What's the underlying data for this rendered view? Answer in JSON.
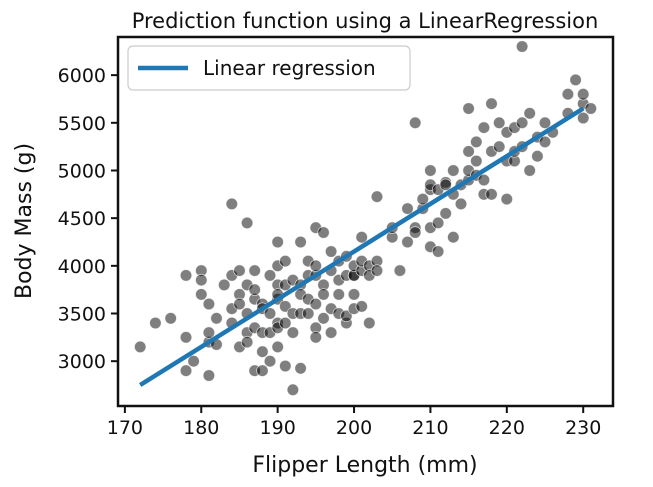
{
  "chart_data": {
    "type": "scatter",
    "title": "Prediction function using a LinearRegression",
    "xlabel": "Flipper Length (mm)",
    "ylabel": "Body Mass (g)",
    "xlim": [
      169.1,
      233.9
    ],
    "ylim": [
      2530,
      6400
    ],
    "xticks": [
      170,
      180,
      190,
      200,
      210,
      220,
      230
    ],
    "yticks": [
      3000,
      3500,
      4000,
      4500,
      5000,
      5500,
      6000
    ],
    "grid": false,
    "legend": {
      "position": "top-left",
      "entries": [
        "Linear regression"
      ]
    },
    "scatter": {
      "color": "#000000",
      "opacity": 0.5,
      "points": [
        [
          172,
          3150
        ],
        [
          174,
          3400
        ],
        [
          176,
          3450
        ],
        [
          178,
          3250
        ],
        [
          178,
          3900
        ],
        [
          178,
          2900
        ],
        [
          179,
          3000
        ],
        [
          180,
          3950
        ],
        [
          180,
          3850
        ],
        [
          180,
          3700
        ],
        [
          181,
          3200
        ],
        [
          181,
          3600
        ],
        [
          181,
          2850
        ],
        [
          181,
          3300
        ],
        [
          182,
          3175
        ],
        [
          182,
          3450
        ],
        [
          183,
          3800
        ],
        [
          184,
          3900
        ],
        [
          184,
          4650
        ],
        [
          184,
          3550
        ],
        [
          184,
          3400
        ],
        [
          185,
          3700
        ],
        [
          185,
          3950
        ],
        [
          185,
          3150
        ],
        [
          185,
          3600
        ],
        [
          186,
          3300
        ],
        [
          186,
          3800
        ],
        [
          186,
          4450
        ],
        [
          186,
          3500
        ],
        [
          186,
          3200
        ],
        [
          187,
          3650
        ],
        [
          187,
          3750
        ],
        [
          187,
          2900
        ],
        [
          187,
          3950
        ],
        [
          187,
          3350
        ],
        [
          188,
          3600
        ],
        [
          188,
          3300
        ],
        [
          188,
          2900
        ],
        [
          188,
          3100
        ],
        [
          188,
          3550
        ],
        [
          189,
          3500
        ],
        [
          189,
          3900
        ],
        [
          189,
          3300
        ],
        [
          189,
          3000
        ],
        [
          190,
          3650
        ],
        [
          190,
          3400
        ],
        [
          190,
          3800
        ],
        [
          190,
          4250
        ],
        [
          190,
          4000
        ],
        [
          190,
          3350
        ],
        [
          190,
          3700
        ],
        [
          190,
          3150
        ],
        [
          191,
          3575
        ],
        [
          191,
          3800
        ],
        [
          191,
          4050
        ],
        [
          191,
          3400
        ],
        [
          191,
          2950
        ],
        [
          192,
          3500
        ],
        [
          192,
          3850
        ],
        [
          192,
          3300
        ],
        [
          192,
          2700
        ],
        [
          193,
          3500
        ],
        [
          193,
          3800
        ],
        [
          193,
          4250
        ],
        [
          193,
          3700
        ],
        [
          193,
          2925
        ],
        [
          194,
          3900
        ],
        [
          194,
          3500
        ],
        [
          194,
          4050
        ],
        [
          194,
          3650
        ],
        [
          195,
          3350
        ],
        [
          195,
          3900
        ],
        [
          195,
          4000
        ],
        [
          195,
          4400
        ],
        [
          195,
          3600
        ],
        [
          195,
          3250
        ],
        [
          196,
          3800
        ],
        [
          196,
          4350
        ],
        [
          196,
          3450
        ],
        [
          196,
          3700
        ],
        [
          197,
          3300
        ],
        [
          197,
          4150
        ],
        [
          197,
          3550
        ],
        [
          197,
          3950
        ],
        [
          198,
          3850
        ],
        [
          198,
          3500
        ],
        [
          198,
          4050
        ],
        [
          198,
          3700
        ],
        [
          199,
          3400
        ],
        [
          199,
          3900
        ],
        [
          199,
          4100
        ],
        [
          199,
          3475
        ],
        [
          200,
          3700
        ],
        [
          200,
          3900
        ],
        [
          200,
          3550
        ],
        [
          200,
          3900
        ],
        [
          200,
          4000
        ],
        [
          201,
          3950
        ],
        [
          201,
          4300
        ],
        [
          201,
          4050
        ],
        [
          201,
          3575
        ],
        [
          202,
          4000
        ],
        [
          202,
          3400
        ],
        [
          202,
          3900
        ],
        [
          203,
          4050
        ],
        [
          203,
          4725
        ],
        [
          203,
          3950
        ],
        [
          205,
          4300
        ],
        [
          205,
          4400
        ],
        [
          206,
          3950
        ],
        [
          207,
          4250
        ],
        [
          207,
          4600
        ],
        [
          208,
          4400
        ],
        [
          208,
          4350
        ],
        [
          208,
          5500
        ],
        [
          209,
          4600
        ],
        [
          209,
          4700
        ],
        [
          210,
          4800
        ],
        [
          210,
          4200
        ],
        [
          210,
          4400
        ],
        [
          210,
          5000
        ],
        [
          210,
          4850
        ],
        [
          211,
          4800
        ],
        [
          211,
          4450
        ],
        [
          211,
          4150
        ],
        [
          212,
          4550
        ],
        [
          212,
          4875
        ],
        [
          212,
          4850
        ],
        [
          213,
          4300
        ],
        [
          213,
          5000
        ],
        [
          213,
          4750
        ],
        [
          214,
          4650
        ],
        [
          214,
          4850
        ],
        [
          215,
          5200
        ],
        [
          215,
          4900
        ],
        [
          215,
          5000
        ],
        [
          215,
          5650
        ],
        [
          216,
          5100
        ],
        [
          216,
          4950
        ],
        [
          216,
          5300
        ],
        [
          217,
          5450
        ],
        [
          217,
          4750
        ],
        [
          217,
          4900
        ],
        [
          218,
          5200
        ],
        [
          218,
          5700
        ],
        [
          218,
          4750
        ],
        [
          219,
          5250
        ],
        [
          219,
          5500
        ],
        [
          220,
          5100
        ],
        [
          220,
          5400
        ],
        [
          220,
          4700
        ],
        [
          221,
          5100
        ],
        [
          221,
          5200
        ],
        [
          221,
          5450
        ],
        [
          222,
          5250
        ],
        [
          222,
          5500
        ],
        [
          222,
          6300
        ],
        [
          223,
          5600
        ],
        [
          223,
          5000
        ],
        [
          224,
          5350
        ],
        [
          224,
          5150
        ],
        [
          225,
          5300
        ],
        [
          225,
          5500
        ],
        [
          226,
          5400
        ],
        [
          228,
          5600
        ],
        [
          228,
          5800
        ],
        [
          229,
          5950
        ],
        [
          230,
          5700
        ],
        [
          230,
          5800
        ],
        [
          230,
          5550
        ],
        [
          231,
          5650
        ]
      ]
    },
    "series": [
      {
        "name": "Linear regression",
        "type": "line",
        "color": "#1f77b4",
        "x": [
          172,
          230
        ],
        "y": [
          2750,
          5650
        ]
      }
    ]
  }
}
